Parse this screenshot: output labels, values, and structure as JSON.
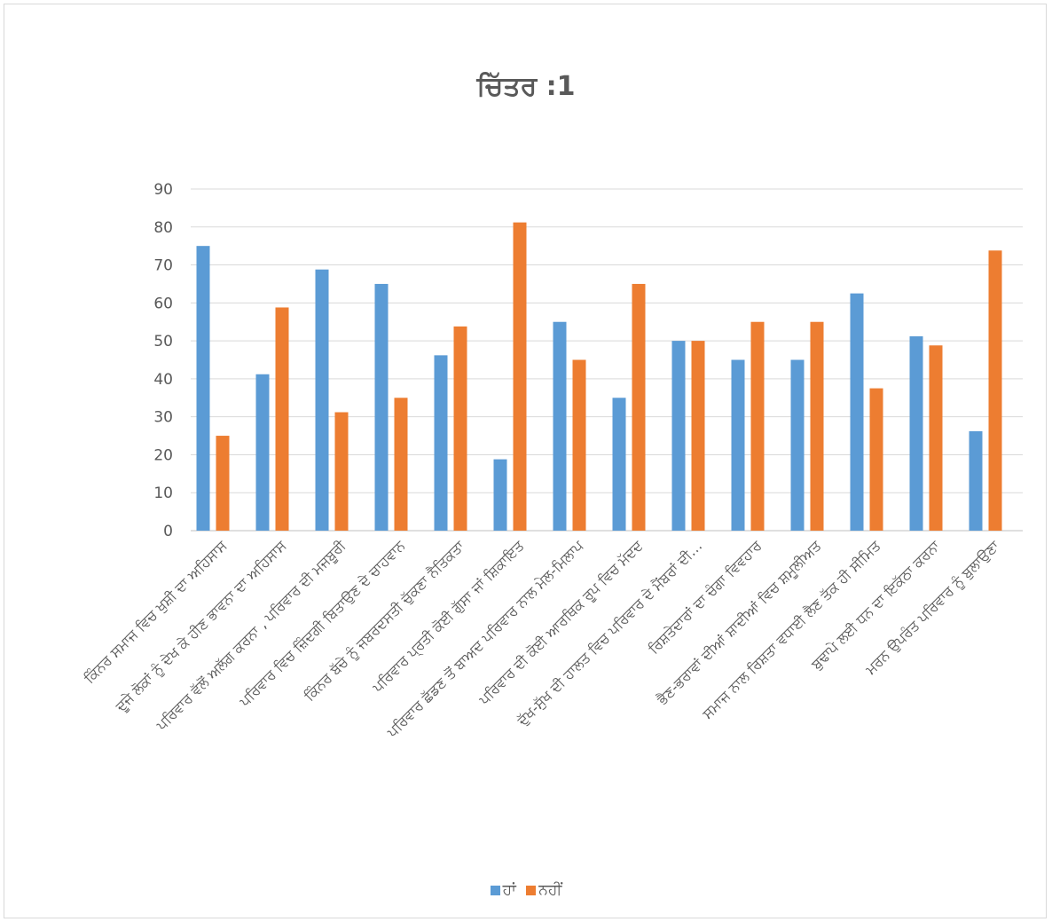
{
  "chart_data": {
    "type": "bar",
    "title": "ਚਿੱਤਰ :1",
    "categories": [
      "ਕਿੰਨਰ ਸਮਾਜ ਵਿਚ ਖੁਸ਼ੀ ਦਾ ਅਹਿਸਾਸ",
      "ਦੂਜੇ ਲੋਕਾਂ ਨੂੰ ਦੇਖ ਕੇ ਹੀਣ ਭਾਵਨਾ ਦਾ ਅਹਿਸਾਸ",
      "ਪਰਿਵਾਰ ਵੱਲੋਂ ਅਲੱਗ ਕਰਨਾ , ਪਰਿਵਾਰ ਦੀ ਮਜਬੂਰੀ",
      "ਪਰਿਵਾਰ ਵਿਚ ਜ਼ਿੰਦਗੀ ਬਿਤਾਉਣ ਦੇ ਚਾਹਵਾਨ",
      "ਕਿੰਨਰ ਬੱਚੇ ਨੂੰ ਜਬਰਦਸਤੀ ਚੁੱਕਣਾ ਨੈਤਿਕਤਾ",
      "ਪਰਿਵਾਰ ਪ੍ਰਤੀ ਕੋਈ ਗੁੱਸਾ ਜਾਂ ਸ਼ਿਕਾਇਤ",
      "ਪਰਿਵਾਰ ਛੱਡਣ ਤੋਂ ਬਾਅਦ ਪਰਿਵਾਰ ਨਾਲ ਮੇਲ-ਮਿਲਾਪ",
      "ਪਰਿਵਾਰ ਦੀ ਕੋਈ ਆਰਥਿਕ ਰੂਪ ਵਿਚ ਮੱਦਦ",
      "ਦੁੱਖ-ਸੁੱਖ ਦੀ ਹਾਲਤ ਵਿਚ ਪਰਿਵਾਰ ਦੇ ਮੈਂਬਰਾਂ ਦੀ…",
      "ਰਿਸ਼ਤੇਦਾਰਾਂ ਦਾ ਚੰਗਾ ਵਿਵਹਾਰ",
      "ਭੈਣ-ਭਰਾਵਾਂ ਦੀਆਂ ਸ਼ਾਦੀਆਂ ਵਿਚ ਸ਼ਮੂਲੀਅਤ",
      "ਸਮਾਜ ਨਾਲ ਰਿਸ਼ਤਾ ਵਧਾਈ ਲੈਣ ਤੱਕ ਹੀ ਸੀਮਿਤ",
      "ਬੁਢਾਪੇ ਲਈ ਧਨ ਦਾ ਇਕੱਠਾ ਕਰਨਾ",
      "ਮਰਨ ਉਪਰੰਤ ਪਰਿਵਾਰ ਨੂੰ ਬੁਲਾਉਣਾ"
    ],
    "series": [
      {
        "name": "ਹਾਂ",
        "color": "#5b9bd5",
        "values": [
          75,
          41.2,
          68.8,
          65,
          46.2,
          18.8,
          55,
          35,
          50,
          45,
          45,
          62.5,
          51.2,
          26.2
        ]
      },
      {
        "name": "ਨਹੀਂ",
        "color": "#ed7d31",
        "values": [
          25,
          58.8,
          31.2,
          35,
          53.8,
          81.2,
          45,
          65,
          50,
          55,
          55,
          37.5,
          48.8,
          73.8
        ]
      }
    ],
    "yticks": [
      0,
      10,
      20,
      30,
      40,
      50,
      60,
      70,
      80,
      90
    ],
    "ylim": [
      0,
      90
    ],
    "grid": true,
    "legend_position": "bottom"
  }
}
